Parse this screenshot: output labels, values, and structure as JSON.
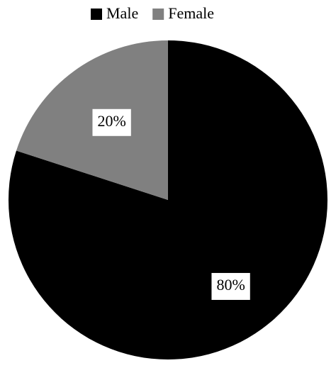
{
  "chart_data": {
    "type": "pie",
    "categories": [
      "Male",
      "Female"
    ],
    "values": [
      80,
      20
    ],
    "value_labels": [
      "80%",
      "20%"
    ],
    "colors": [
      "#000000",
      "#808080"
    ],
    "legend": "top"
  }
}
